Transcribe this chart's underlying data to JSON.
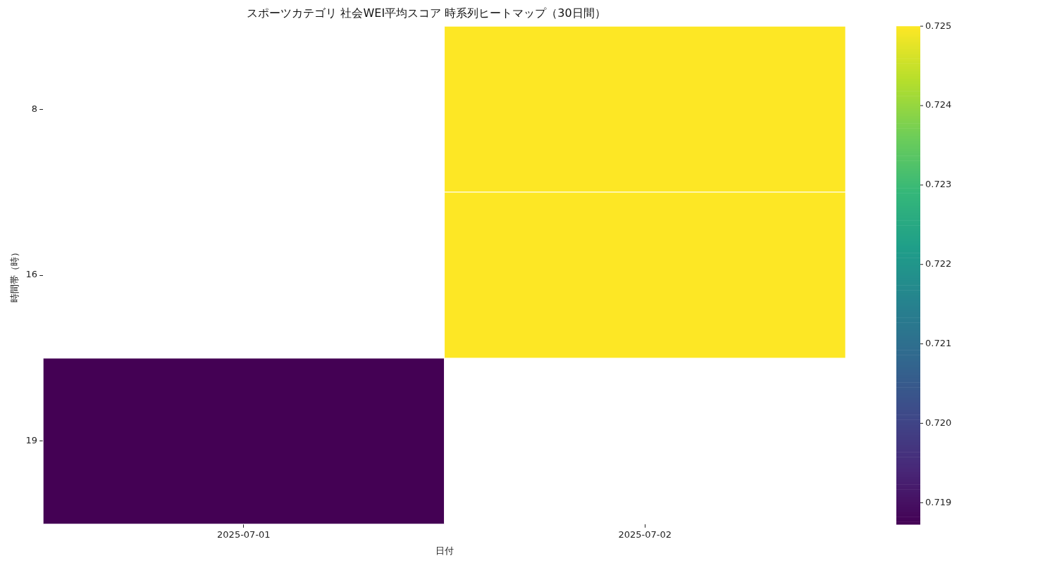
{
  "chart_data": {
    "type": "heatmap",
    "title": "スポーツカテゴリ 社会WEI平均スコア 時系列ヒートマップ（30日間）",
    "xlabel": "日付",
    "ylabel": "時間帯（時）",
    "categories": [
      "2025-07-01",
      "2025-07-02"
    ],
    "y_categories": [
      "8",
      "16",
      "19"
    ],
    "cells": [
      [
        null,
        0.725
      ],
      [
        null,
        0.725
      ],
      [
        0.71873,
        null
      ]
    ],
    "clim": [
      0.71873,
      0.725
    ],
    "cticks": [
      0.719,
      {
        "value": 0.72,
        "label": "0.720"
      },
      0.721,
      0.722,
      0.723,
      0.724,
      0.725
    ]
  }
}
